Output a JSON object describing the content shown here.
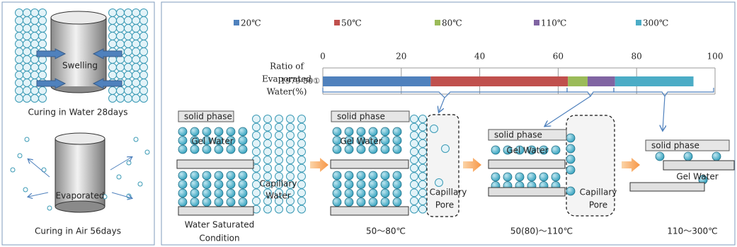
{
  "left_panel": {
    "top_label": "Swelling",
    "top_caption": "Curing in Water 28days",
    "bottom_label": "Evaporated",
    "bottom_caption": "Curing in Air 56days"
  },
  "chart_data": {
    "type": "bar",
    "orientation": "horizontal",
    "stacked": true,
    "axis_label": [
      "Ratio of",
      "Evaporated",
      "Water(%)"
    ],
    "categories": [
      "1979-50①"
    ],
    "series": [
      {
        "name": "20℃",
        "color": "#4f81bd",
        "values": [
          27.5
        ]
      },
      {
        "name": "50℃",
        "color": "#c0504d",
        "values": [
          35
        ]
      },
      {
        "name": "80℃",
        "color": "#9bbb59",
        "values": [
          5
        ]
      },
      {
        "name": "110℃",
        "color": "#8064a2",
        "values": [
          7
        ]
      },
      {
        "name": "300℃",
        "color": "#4bacc6",
        "values": [
          20
        ]
      }
    ],
    "xlim": [
      0,
      100
    ],
    "xticks": [
      0,
      20,
      40,
      60,
      80,
      100
    ],
    "grid": true
  },
  "stages": [
    {
      "phase": "solid phase",
      "gel": "Gel Water",
      "capillary": [
        "Capillary",
        "Water"
      ],
      "caption": [
        "Water Saturated",
        "Condition"
      ]
    },
    {
      "phase": "solid phase",
      "gel": "Gel Water",
      "capillary": [
        "Capillary",
        "Pore"
      ],
      "caption": [
        "50～80℃"
      ]
    },
    {
      "phase": "solid phase",
      "gel": "Gel Water",
      "capillary": [
        "Capillary",
        "Pore"
      ],
      "caption": [
        "50(80)～110℃"
      ]
    },
    {
      "phase": "solid phase",
      "gel": "Gel Water",
      "caption": [
        "110～300℃"
      ]
    }
  ]
}
